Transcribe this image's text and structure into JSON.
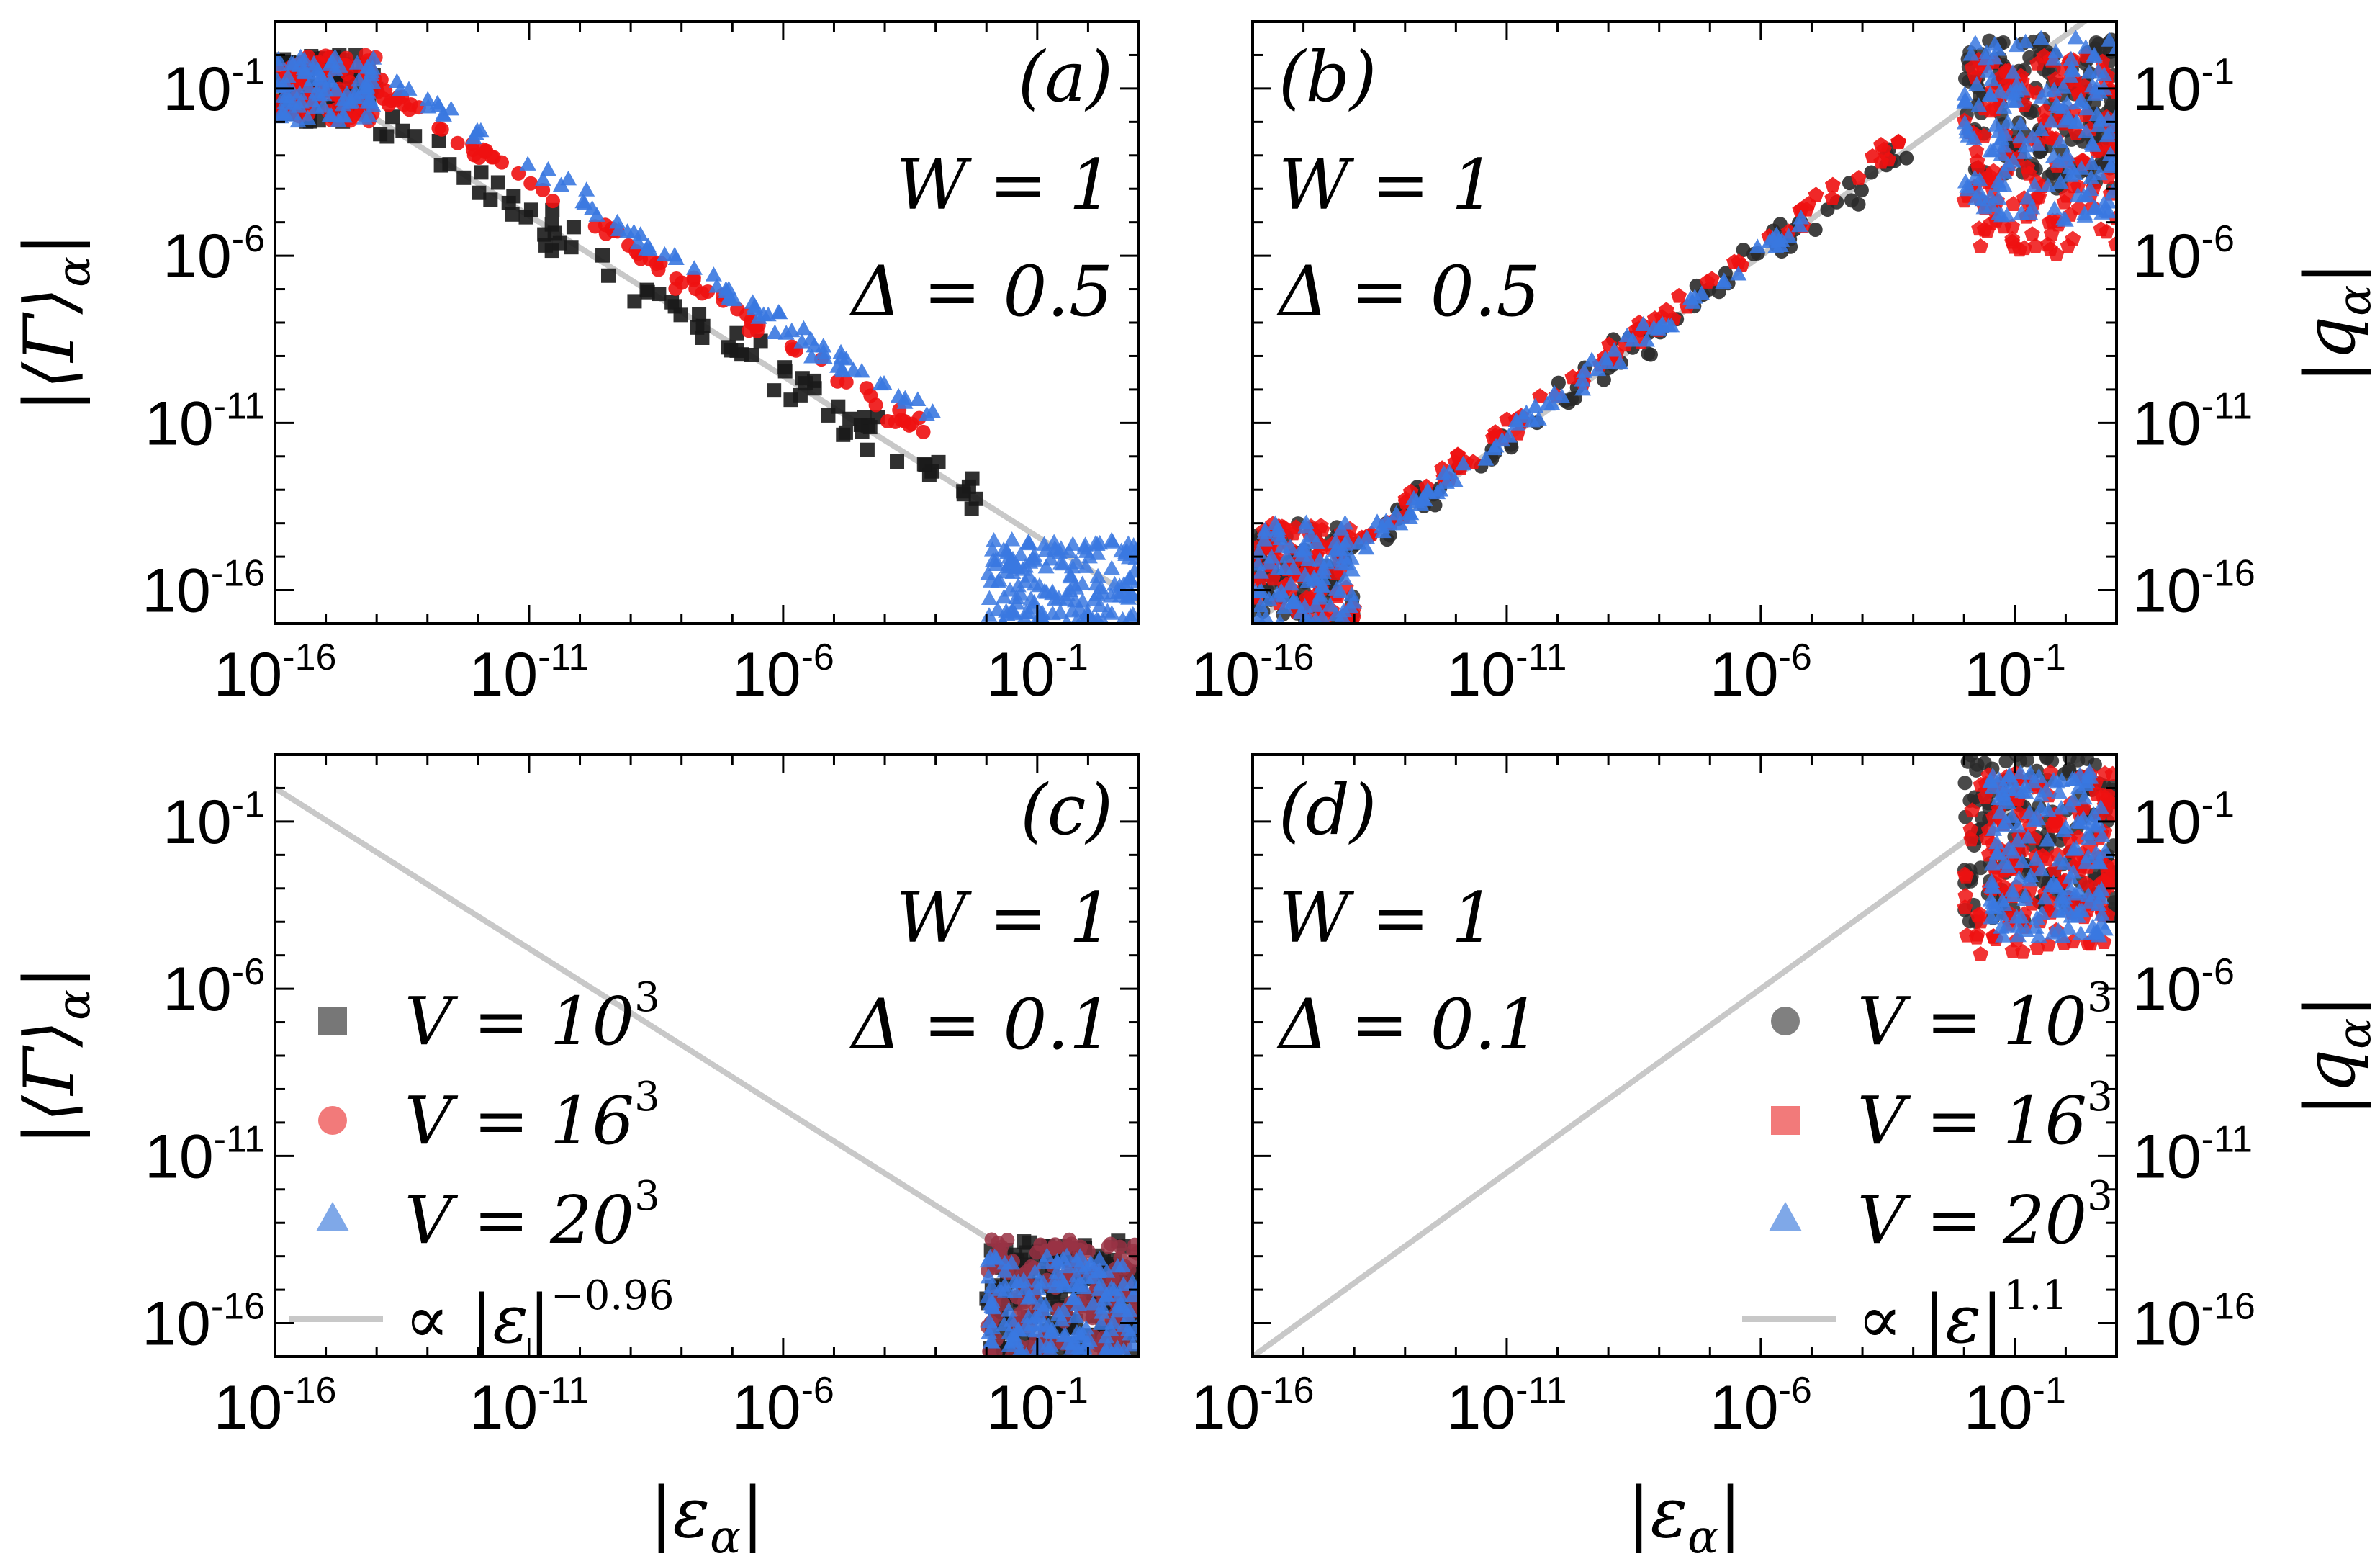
{
  "chart_data": [
    {
      "id": "a",
      "type": "scatter",
      "panel_label": "(a)",
      "annotation_lines": [
        "W = 1",
        "Δ = 0.5"
      ],
      "xscale": "log",
      "yscale": "log",
      "xlim": [
        1e-16,
        10
      ],
      "ylim": [
        1e-17,
        10
      ],
      "x_tick_labels": [
        "10-16",
        "10-11",
        "10-6",
        "10-1"
      ],
      "y_tick_labels": [
        "10-1",
        "10-6",
        "10-11",
        "10-16"
      ],
      "ylabel": "|⟨Γ⟩α|",
      "xlabel": "",
      "y_axis_side": "left",
      "legend": null,
      "fit": {
        "exponent": -0.96,
        "point": [
          1e-16,
          1.0
        ]
      },
      "series": [
        {
          "marker": "square",
          "color": "#1a1a1a",
          "cloud": {
            "x_exp": [
              -16,
              -14
            ],
            "y_exp": [
              -2,
              0
            ]
          },
          "trend": {
            "x_exp": [
              -14,
              -2
            ],
            "offset": 0.0,
            "spread": 0.9
          }
        },
        {
          "marker": "circle",
          "color": "#ee1111",
          "cloud": {
            "x_exp": [
              -16,
              -14
            ],
            "y_exp": [
              -2,
              0
            ]
          },
          "trend": {
            "x_exp": [
              -14,
              -3
            ],
            "offset": 1.0,
            "spread": 0.5
          }
        },
        {
          "marker": "triangle",
          "color": "#3a78e0",
          "cloud": {
            "x_exp": [
              -16,
              -14
            ],
            "y_exp": [
              -2,
              0
            ]
          },
          "trend": {
            "x_exp": [
              -14,
              -3
            ],
            "offset": 1.5,
            "spread": 0.5
          },
          "end_cloud": {
            "x_exp": [
              -2,
              1
            ],
            "y_exp": [
              -17,
              -14.5
            ]
          }
        }
      ]
    },
    {
      "id": "b",
      "type": "scatter",
      "panel_label": "(b)",
      "annotation_lines": [
        "W = 1",
        "Δ = 0.5"
      ],
      "xscale": "log",
      "yscale": "log",
      "xlim": [
        1e-16,
        10
      ],
      "ylim": [
        1e-17,
        10
      ],
      "x_tick_labels": [
        "10-16",
        "10-11",
        "10-6",
        "10-1"
      ],
      "y_tick_labels": [
        "10-1",
        "10-6",
        "10-11",
        "10-16"
      ],
      "ylabel": "|qα|",
      "xlabel": "",
      "y_axis_side": "right",
      "legend": null,
      "fit": {
        "exponent": 1.1,
        "point": [
          1e-16,
          1e-17
        ]
      },
      "series": [
        {
          "marker": "circle",
          "color": "#2a2a2a",
          "cloud": {
            "x_exp": [
              -16,
              -14
            ],
            "y_exp": [
              -17,
              -14
            ]
          },
          "trend": {
            "x_exp": [
              -14,
              -3
            ],
            "offset": 0.0,
            "spread": 0.8
          },
          "end_cloud": {
            "x_exp": [
              -2,
              1
            ],
            "y_exp": [
              -4,
              0.5
            ]
          }
        },
        {
          "marker": "pentagon",
          "color": "#ee1111",
          "cloud": {
            "x_exp": [
              -16,
              -14
            ],
            "y_exp": [
              -17,
              -14
            ]
          },
          "trend": {
            "x_exp": [
              -14,
              -3
            ],
            "offset": 0.3,
            "spread": 0.6
          },
          "end_cloud": {
            "x_exp": [
              -2,
              1
            ],
            "y_exp": [
              -6,
              0
            ]
          }
        },
        {
          "marker": "triangle",
          "color": "#3a78e0",
          "cloud": {
            "x_exp": [
              -16,
              -14
            ],
            "y_exp": [
              -17,
              -14
            ]
          },
          "trend": {
            "x_exp": [
              -14,
              -5
            ],
            "offset": 0.1,
            "spread": 0.5
          },
          "end_cloud": {
            "x_exp": [
              -2,
              1
            ],
            "y_exp": [
              -5,
              0.5
            ]
          }
        }
      ]
    },
    {
      "id": "c",
      "type": "scatter",
      "panel_label": "(c)",
      "annotation_lines": [
        "W = 1",
        "Δ = 0.1"
      ],
      "xscale": "log",
      "yscale": "log",
      "xlim": [
        1e-16,
        10
      ],
      "ylim": [
        1e-17,
        10
      ],
      "x_tick_labels": [
        "10-16",
        "10-11",
        "10-6",
        "10-1"
      ],
      "y_tick_labels": [
        "10-1",
        "10-6",
        "10-11",
        "10-16"
      ],
      "ylabel": "|⟨Γ⟩α|",
      "xlabel": "|εα|",
      "y_axis_side": "left",
      "legend": {
        "entries": [
          {
            "marker": "square",
            "color": "#777777",
            "label": "V = 10",
            "sup": "3"
          },
          {
            "marker": "circle",
            "color": "#f27a7a",
            "label": "V = 16",
            "sup": "3"
          },
          {
            "marker": "triangle",
            "color": "#7fa8e8",
            "label": "V = 20",
            "sup": "3"
          },
          {
            "marker": "line",
            "color": "#c8c8c8",
            "label": "∝ |ε|",
            "sup": "−0.96"
          }
        ]
      },
      "fit": {
        "exponent": -0.96,
        "point": [
          1e-16,
          1.0
        ]
      },
      "series": [
        {
          "marker": "square",
          "color": "#1a1a1a",
          "end_cloud": {
            "x_exp": [
              -2,
              1
            ],
            "y_exp": [
              -17,
              -13.5
            ]
          }
        },
        {
          "marker": "circle",
          "color": "#993344",
          "end_cloud": {
            "x_exp": [
              -2,
              1
            ],
            "y_exp": [
              -17,
              -13.5
            ]
          }
        },
        {
          "marker": "triangle",
          "color": "#3a78e0",
          "end_cloud": {
            "x_exp": [
              -2,
              1
            ],
            "y_exp": [
              -17,
              -14
            ]
          }
        }
      ]
    },
    {
      "id": "d",
      "type": "scatter",
      "panel_label": "(d)",
      "annotation_lines": [
        "W = 1",
        "Δ = 0.1"
      ],
      "xscale": "log",
      "yscale": "log",
      "xlim": [
        1e-16,
        10
      ],
      "ylim": [
        1e-17,
        10
      ],
      "x_tick_labels": [
        "10-16",
        "10-11",
        "10-6",
        "10-1"
      ],
      "y_tick_labels": [
        "10-1",
        "10-6",
        "10-11",
        "10-16"
      ],
      "ylabel": "|qα|",
      "xlabel": "|εα|",
      "y_axis_side": "right",
      "legend": {
        "entries": [
          {
            "marker": "circle",
            "color": "#808080",
            "label": "V = 10",
            "sup": "3"
          },
          {
            "marker": "square",
            "color": "#f27a7a",
            "label": "V = 16",
            "sup": "3"
          },
          {
            "marker": "triangle",
            "color": "#7fa8e8",
            "label": "V = 20",
            "sup": "3"
          },
          {
            "marker": "line",
            "color": "#c8c8c8",
            "label": "∝ |ε|",
            "sup": "1.1"
          }
        ]
      },
      "fit": {
        "exponent": 1.1,
        "point": [
          1e-16,
          1e-17
        ]
      },
      "series": [
        {
          "marker": "circle",
          "color": "#2a2a2a",
          "end_cloud": {
            "x_exp": [
              -2,
              1
            ],
            "y_exp": [
              -4,
              1
            ]
          }
        },
        {
          "marker": "pentagon",
          "color": "#ee1111",
          "end_cloud": {
            "x_exp": [
              -2,
              1
            ],
            "y_exp": [
              -5,
              0.5
            ]
          }
        },
        {
          "marker": "triangle",
          "color": "#3a78e0",
          "end_cloud": {
            "x_exp": [
              -1.5,
              0.8
            ],
            "y_exp": [
              -4.5,
              0.5
            ]
          }
        }
      ]
    }
  ]
}
